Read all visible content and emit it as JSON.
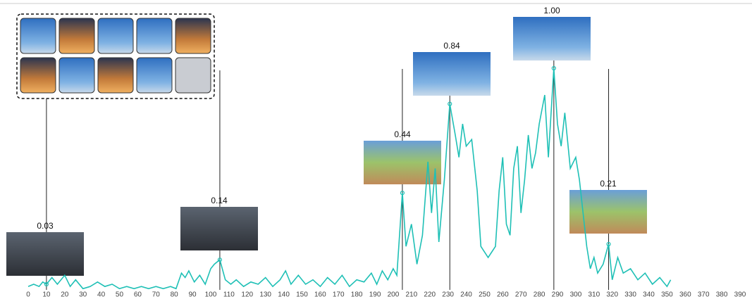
{
  "chart_data": {
    "type": "line",
    "x": [
      0,
      3,
      6,
      8,
      10,
      13,
      16,
      20,
      23,
      26,
      30,
      34,
      38,
      42,
      46,
      50,
      54,
      58,
      62,
      66,
      70,
      74,
      78,
      81,
      84,
      86,
      88,
      91,
      94,
      97,
      100,
      102,
      105,
      108,
      111,
      114,
      118,
      122,
      126,
      130,
      134,
      138,
      141,
      144,
      148,
      152,
      156,
      160,
      164,
      168,
      172,
      176,
      180,
      184,
      188,
      191,
      194,
      197,
      200,
      202,
      205,
      207,
      210,
      213,
      216,
      219,
      221,
      223,
      225,
      228,
      231,
      234,
      236,
      238,
      240,
      243,
      246,
      248,
      252,
      256,
      258,
      260,
      262,
      264,
      266,
      268,
      270,
      272,
      274,
      276,
      278,
      280,
      283,
      285,
      288,
      290,
      292,
      294,
      297,
      300,
      302,
      304,
      306,
      308,
      310,
      312,
      315,
      318,
      320,
      323,
      326,
      330,
      334,
      338,
      342,
      346,
      350,
      352
    ],
    "series": [
      {
        "color": "#1fc0b6",
        "values": [
          0.02,
          0.03,
          0.02,
          0.04,
          0.03,
          0.06,
          0.03,
          0.07,
          0.02,
          0.05,
          0.01,
          0.02,
          0.04,
          0.02,
          0.03,
          0.01,
          0.02,
          0.01,
          0.02,
          0.01,
          0.02,
          0.01,
          0.02,
          0.01,
          0.08,
          0.06,
          0.09,
          0.04,
          0.07,
          0.03,
          0.1,
          0.12,
          0.14,
          0.05,
          0.03,
          0.05,
          0.02,
          0.04,
          0.03,
          0.06,
          0.02,
          0.05,
          0.09,
          0.03,
          0.07,
          0.03,
          0.05,
          0.02,
          0.06,
          0.03,
          0.07,
          0.02,
          0.05,
          0.04,
          0.08,
          0.03,
          0.09,
          0.05,
          0.1,
          0.07,
          0.44,
          0.2,
          0.3,
          0.12,
          0.25,
          0.58,
          0.35,
          0.55,
          0.22,
          0.5,
          0.84,
          0.7,
          0.6,
          0.75,
          0.65,
          0.68,
          0.45,
          0.2,
          0.15,
          0.2,
          0.45,
          0.6,
          0.3,
          0.25,
          0.55,
          0.65,
          0.35,
          0.5,
          0.7,
          0.55,
          0.62,
          0.75,
          0.88,
          0.6,
          1.0,
          0.75,
          0.65,
          0.8,
          0.55,
          0.6,
          0.5,
          0.35,
          0.2,
          0.1,
          0.15,
          0.08,
          0.12,
          0.21,
          0.05,
          0.15,
          0.08,
          0.1,
          0.05,
          0.08,
          0.03,
          0.06,
          0.02,
          0.05
        ]
      }
    ],
    "annotations": [
      {
        "x": 10,
        "label": "0.03"
      },
      {
        "x": 105,
        "label": "0.14"
      },
      {
        "x": 205,
        "label": "0.44"
      },
      {
        "x": 231,
        "label": "0.84"
      },
      {
        "x": 288,
        "label": "1.00"
      },
      {
        "x": 318,
        "label": "0.21"
      }
    ],
    "xlim": [
      0,
      395
    ],
    "ylim": [
      0,
      1
    ],
    "xticks": [
      0,
      10,
      20,
      30,
      40,
      50,
      60,
      70,
      80,
      90,
      100,
      110,
      120,
      130,
      140,
      150,
      160,
      170,
      180,
      190,
      200,
      210,
      220,
      230,
      240,
      250,
      260,
      270,
      280,
      290,
      300,
      310,
      320,
      330,
      340,
      350,
      360,
      370,
      380,
      390
    ]
  }
}
